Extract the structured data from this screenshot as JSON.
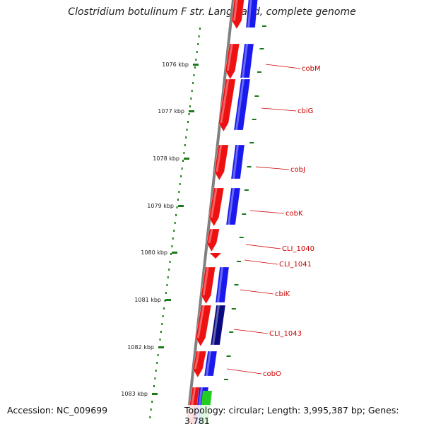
{
  "title": "Clostridium botulinum F str. Langeland, complete genome",
  "footer": {
    "accession": "Accession: NC_009699",
    "topology": "Topology: circular; Length: 3,995,387 bp; Genes: 3,781"
  },
  "colors": {
    "cds_strand": "#ee1111",
    "gene_strand": "#1a1aee",
    "gene_strand_dark": "#0a0a80",
    "rna_strand": "#22cc22",
    "backbone": "#808080",
    "ticks": "#1a7a1a",
    "label": "#cc0000"
  },
  "ruler": {
    "unit": "kbp",
    "labels": [
      "1076 kbp",
      "1077 kbp",
      "1078 kbp",
      "1079 kbp",
      "1080 kbp",
      "1081 kbp",
      "1082 kbp",
      "1083 kbp"
    ]
  },
  "features": [
    {
      "label": "",
      "type": "CDS"
    },
    {
      "label": "cobM",
      "type": "CDS"
    },
    {
      "label": "cbiG",
      "type": "CDS"
    },
    {
      "label": "cobJ",
      "type": "CDS"
    },
    {
      "label": "cobK",
      "type": "CDS"
    },
    {
      "label": "CLI_1040",
      "type": "CDS"
    },
    {
      "label": "CLI_1041",
      "type": "CDS"
    },
    {
      "label": "cbiK",
      "type": "CDS"
    },
    {
      "label": "CLI_1043",
      "type": "CDS"
    },
    {
      "label": "cobO",
      "type": "CDS"
    },
    {
      "label": "",
      "type": "CDS"
    }
  ]
}
